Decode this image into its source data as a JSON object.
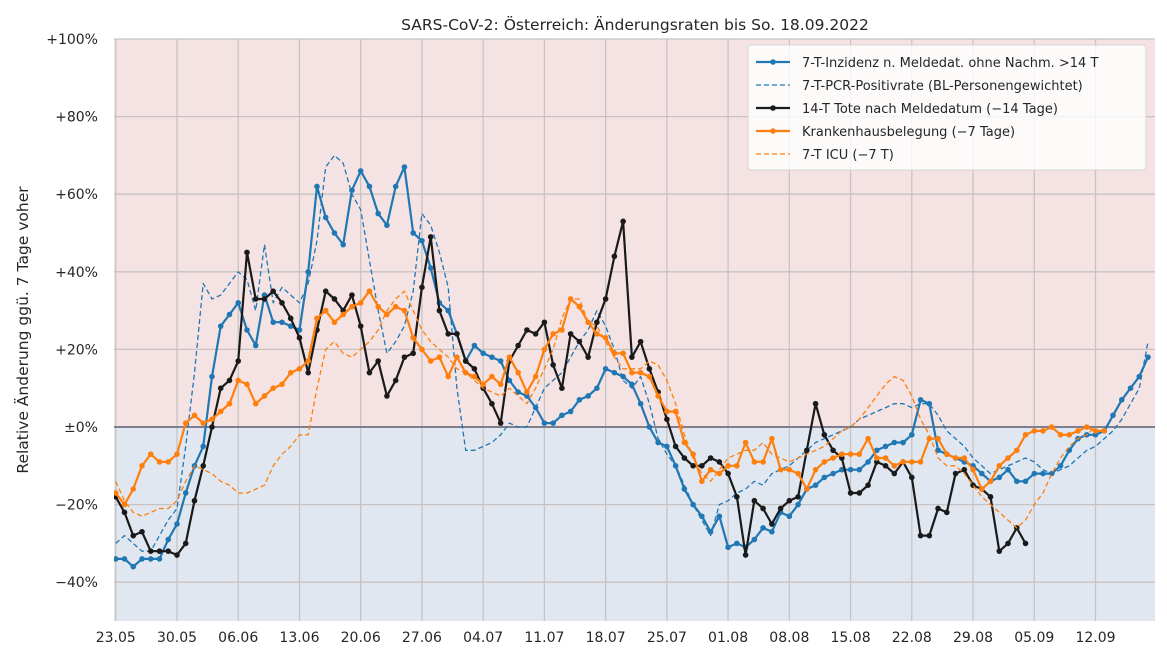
{
  "chart_data": {
    "type": "line",
    "title": "SARS-CoV-2: Österreich: Änderungsraten bis So. 18.09.2022",
    "ylabel": "Relative Änderung ggü. 7 Tage voher",
    "xlabel": "",
    "ylim": [
      -50,
      100
    ],
    "yticks": [
      -40,
      -20,
      0,
      20,
      40,
      60,
      80,
      100
    ],
    "ytick_labels": [
      "−40%",
      "−20%",
      "±0%",
      "+20%",
      "+40%",
      "+60%",
      "+80%",
      "+100%"
    ],
    "xlim": [
      -0.2,
      118.8
    ],
    "xticks": [
      0,
      7,
      14,
      21,
      28,
      35,
      42,
      49,
      56,
      63,
      70,
      77,
      84,
      91,
      98,
      105,
      112
    ],
    "xtick_labels": [
      "23.05",
      "30.05",
      "06.06",
      "13.06",
      "20.06",
      "27.06",
      "04.07",
      "11.07",
      "18.07",
      "25.07",
      "01.08",
      "08.08",
      "15.08",
      "22.08",
      "29.08",
      "05.09",
      "12.09"
    ],
    "x_unit": "days since 23.05.2022",
    "positive_region_color": "#f5e3e3",
    "negative_region_color": "#e1e7f0",
    "zero_line_color": "#7f7f8c",
    "legend_position": "top-right",
    "series": [
      {
        "name": "7-T-Inzidenz n. Meldedat. ohne Nachm. >14 T",
        "color": "#1f77b4",
        "style": "solid",
        "marker": true,
        "x_start": 0,
        "values": [
          -34,
          -34,
          -36,
          -34,
          -34,
          -34,
          -29,
          -25,
          -17,
          -10,
          -5,
          13,
          26,
          29,
          32,
          25,
          21,
          34,
          27,
          27,
          26,
          25,
          40,
          62,
          54,
          50,
          47,
          61,
          66,
          62,
          55,
          52,
          62,
          67,
          50,
          48,
          41,
          32,
          30,
          24,
          17,
          21,
          19,
          18,
          17,
          12,
          9,
          8,
          5,
          1,
          1,
          3,
          4,
          7,
          8,
          10,
          15,
          14,
          13,
          11,
          6,
          0,
          -4,
          -5,
          -10,
          -16,
          -20,
          -23,
          -27,
          -23,
          -31,
          -30,
          -31,
          -29,
          -26,
          -27,
          -22,
          -23,
          -20,
          -16,
          -15,
          -13,
          -12,
          -11,
          -11,
          -11,
          -9,
          -6,
          -5,
          -4,
          -4,
          -2,
          7,
          6,
          -6,
          -7,
          -8,
          -9,
          -10,
          -12,
          -14,
          -13,
          -11,
          -14,
          -14,
          -12,
          -12,
          -12,
          -10,
          -6,
          -3,
          -2,
          -2,
          -1,
          3,
          7,
          10,
          13,
          18
        ]
      },
      {
        "name": "7-T-PCR-Positivrate (BL-Personengewichtet)",
        "color": "#1f77b4",
        "style": "dashed",
        "marker": false,
        "x_start": 0,
        "values": [
          -30,
          -28,
          -30,
          -32,
          -32,
          -28,
          -24,
          -21,
          -5,
          14,
          37,
          33,
          34,
          37,
          40,
          38,
          30,
          47,
          32,
          36,
          34,
          32,
          37,
          48,
          67,
          70,
          68,
          60,
          56,
          43,
          30,
          19,
          22,
          26,
          35,
          55,
          52,
          45,
          36,
          10,
          -6,
          -6,
          -5,
          -4,
          -2,
          1,
          0,
          0,
          5,
          10,
          12,
          14,
          18,
          22,
          25,
          30,
          26,
          20,
          12,
          10,
          13,
          6,
          -3,
          -7,
          -10,
          -15,
          -20,
          -24,
          -28,
          -20,
          -19,
          -17,
          -16,
          -14,
          -15,
          -12,
          -11,
          -10,
          -8,
          -6,
          -4,
          -3,
          -2,
          -1,
          0,
          2,
          3,
          4,
          5,
          6,
          6,
          5,
          6,
          6,
          3,
          -1,
          -3,
          -5,
          -8,
          -10,
          -12,
          -11,
          -10,
          -9,
          -8,
          -9,
          -11,
          -12,
          -11,
          -10,
          -8,
          -6,
          -5,
          -3,
          -1,
          2,
          6,
          10,
          22
        ]
      },
      {
        "name": "14-T Tote nach Meldedatum (−14 Tage)",
        "color": "#1a1a1a",
        "style": "solid",
        "marker": true,
        "x_start": 0,
        "values": [
          -18,
          -22,
          -28,
          -27,
          -32,
          -32,
          -32,
          -33,
          -30,
          -19,
          -10,
          0,
          10,
          12,
          17,
          45,
          33,
          33,
          35,
          32,
          28,
          23,
          14,
          25,
          35,
          33,
          30,
          34,
          26,
          14,
          17,
          8,
          12,
          18,
          19,
          36,
          49,
          30,
          24,
          24,
          17,
          15,
          10,
          6,
          1,
          17,
          21,
          25,
          24,
          27,
          16,
          10,
          24,
          22,
          18,
          27,
          33,
          44,
          53,
          18,
          22,
          15,
          9,
          2,
          -5,
          -8,
          -10,
          -10,
          -8,
          -9,
          -12,
          -18,
          -33,
          -19,
          -21,
          -25,
          -21,
          -19,
          -18,
          -6,
          6,
          -2,
          -6,
          -8,
          -17,
          -17,
          -15,
          -9,
          -10,
          -12,
          -9,
          -13,
          -28,
          -28,
          -21,
          -22,
          -12,
          -11,
          -15,
          -16,
          -18,
          -32,
          -30,
          -26,
          -30
        ]
      },
      {
        "name": "Krankenhausbelegung (−7 Tage)",
        "color": "#ff7f0e",
        "style": "solid",
        "marker": true,
        "x_start": 0,
        "values": [
          -17,
          -20,
          -16,
          -10,
          -7,
          -9,
          -9,
          -7,
          1,
          3,
          1,
          2,
          4,
          6,
          12,
          11,
          6,
          8,
          10,
          11,
          14,
          15,
          17,
          28,
          30,
          27,
          29,
          31,
          32,
          35,
          31,
          29,
          31,
          30,
          23,
          20,
          17,
          18,
          13,
          18,
          14,
          13,
          11,
          13,
          11,
          18,
          14,
          9,
          13,
          20,
          24,
          25,
          33,
          31,
          27,
          24,
          23,
          19,
          19,
          14,
          14,
          13,
          8,
          4,
          4,
          -4,
          -7,
          -14,
          -11,
          -12,
          -10,
          -10,
          -4,
          -9,
          -9,
          -3,
          -11,
          -11,
          -12,
          -16,
          -11,
          -9,
          -8,
          -7,
          -7,
          -7,
          -3,
          -8,
          -8,
          -10,
          -9,
          -9,
          -9,
          -3,
          -3,
          -7,
          -8,
          -8,
          -11,
          -16,
          -14,
          -10,
          -8,
          -6,
          -2,
          -1,
          -1,
          0,
          -2,
          -2,
          -1,
          0,
          -1,
          -1
        ]
      },
      {
        "name": "7-T ICU (−7 T)",
        "color": "#ff7f0e",
        "style": "dashed",
        "marker": false,
        "x_start": 0,
        "values": [
          -14,
          -19,
          -22,
          -23,
          -22,
          -21,
          -21,
          -19,
          -14,
          -10,
          -11,
          -12,
          -14,
          -15,
          -17,
          -17,
          -16,
          -15,
          -10,
          -7,
          -5,
          -2,
          -2,
          10,
          20,
          22,
          19,
          18,
          20,
          22,
          25,
          30,
          33,
          35,
          30,
          25,
          22,
          20,
          18,
          15,
          14,
          12,
          10,
          9,
          8,
          10,
          8,
          6,
          10,
          15,
          20,
          28,
          33,
          33,
          27,
          26,
          22,
          18,
          15,
          15,
          15,
          17,
          16,
          12,
          6,
          -2,
          -8,
          -12,
          -14,
          -11,
          -8,
          -7,
          -6,
          -6,
          -4,
          -7,
          -8,
          -9,
          -8,
          -7,
          -6,
          -5,
          -3,
          -1,
          0,
          2,
          5,
          8,
          11,
          13,
          12,
          8,
          2,
          -2,
          -8,
          -10,
          -10,
          -12,
          -15,
          -18,
          -20,
          -22,
          -24,
          -26,
          -24,
          -20,
          -17,
          -12,
          -8,
          -5,
          -3,
          -2,
          0
        ]
      }
    ]
  }
}
